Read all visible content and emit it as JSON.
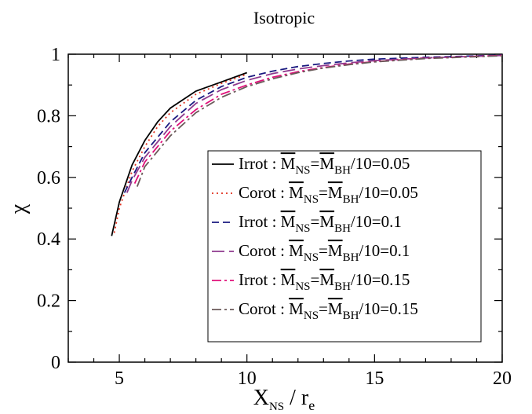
{
  "chart_data": {
    "type": "line",
    "title": "Isotropic",
    "xlabel": "X_NS / r_e",
    "xlabel_main": "X",
    "xlabel_sub": "NS",
    "xlabel_rest": " / r",
    "xlabel_sub2": "e",
    "ylabel": "χ",
    "xlim": [
      3,
      20
    ],
    "ylim": [
      0,
      1
    ],
    "xticks": [
      5,
      10,
      15,
      20
    ],
    "xtick_labels": [
      "5",
      "10",
      "15",
      "20"
    ],
    "yticks": [
      0,
      0.2,
      0.4,
      0.6,
      0.8,
      1
    ],
    "ytick_labels": [
      "0",
      "0.2",
      "0.4",
      "0.6",
      "0.8",
      "1"
    ],
    "grid": false,
    "legend_position": "bottom-right",
    "series": [
      {
        "name": "Irrot : M_NS=M_BH/10=0.05",
        "label_prefix": "Irrot : ",
        "label_suffix": "/10=0.05",
        "color": "#000000",
        "dash": "solid",
        "x": [
          4.7,
          5.0,
          5.5,
          6.0,
          6.5,
          7.0,
          8.0,
          9.0,
          10.0
        ],
        "y": [
          0.41,
          0.52,
          0.64,
          0.72,
          0.78,
          0.825,
          0.88,
          0.91,
          0.94
        ]
      },
      {
        "name": "Corot : M_NS=M_BH/10=0.05",
        "label_prefix": "Corot : ",
        "label_suffix": "/10=0.05",
        "color": "#e0301e",
        "dash": "dotted",
        "x": [
          4.8,
          5.0,
          5.5,
          6.0,
          6.5,
          7.0,
          8.0,
          9.0,
          10.0
        ],
        "y": [
          0.42,
          0.5,
          0.62,
          0.7,
          0.765,
          0.81,
          0.87,
          0.905,
          0.935
        ]
      },
      {
        "name": "Irrot : M_NS=M_BH/10=0.1",
        "label_prefix": "Irrot : ",
        "label_suffix": "/10=0.1",
        "color": "#1a1a80",
        "dash": "dashed",
        "x": [
          5.2,
          5.5,
          6.0,
          7.0,
          8.0,
          9.0,
          10.0,
          11.0,
          12.0,
          13.0,
          14.0,
          15.0,
          17.0,
          20.0
        ],
        "y": [
          0.55,
          0.6,
          0.68,
          0.78,
          0.85,
          0.895,
          0.925,
          0.945,
          0.96,
          0.97,
          0.978,
          0.984,
          0.99,
          0.997
        ]
      },
      {
        "name": "Corot : M_NS=M_BH/10=0.1",
        "label_prefix": "Corot : ",
        "label_suffix": "/10=0.1",
        "color": "#8e3a8e",
        "dash": "longdash",
        "x": [
          5.3,
          5.5,
          6.0,
          7.0,
          8.0,
          9.0,
          10.0,
          11.0,
          12.0,
          13.0,
          14.0,
          15.0,
          17.0,
          20.0
        ],
        "y": [
          0.55,
          0.59,
          0.665,
          0.765,
          0.84,
          0.885,
          0.915,
          0.937,
          0.952,
          0.963,
          0.972,
          0.979,
          0.988,
          0.996
        ]
      },
      {
        "name": "Irrot : M_NS=M_BH/10=0.15",
        "label_prefix": "Irrot : ",
        "label_suffix": "/10=0.15",
        "color": "#e0107a",
        "dash": "dashdot",
        "x": [
          5.6,
          6.0,
          7.0,
          8.0,
          9.0,
          10.0,
          11.0,
          12.0,
          13.0,
          14.0,
          15.0,
          17.0,
          20.0
        ],
        "y": [
          0.58,
          0.65,
          0.75,
          0.82,
          0.87,
          0.9,
          0.925,
          0.943,
          0.957,
          0.968,
          0.976,
          0.987,
          0.996
        ]
      },
      {
        "name": "Corot : M_NS=M_BH/10=0.15",
        "label_prefix": "Corot : ",
        "label_suffix": "/10=0.15",
        "color": "#6b5a5a",
        "dash": "dashdot",
        "x": [
          5.7,
          6.0,
          7.0,
          8.0,
          9.0,
          10.0,
          11.0,
          12.0,
          13.0,
          14.0,
          15.0,
          17.0,
          20.0
        ],
        "y": [
          0.57,
          0.635,
          0.735,
          0.81,
          0.86,
          0.895,
          0.92,
          0.94,
          0.955,
          0.966,
          0.975,
          0.986,
          0.995
        ]
      }
    ],
    "legend_symbol": {
      "m": "M",
      "ns": "NS",
      "eq": "=",
      "bh": "BH"
    }
  }
}
